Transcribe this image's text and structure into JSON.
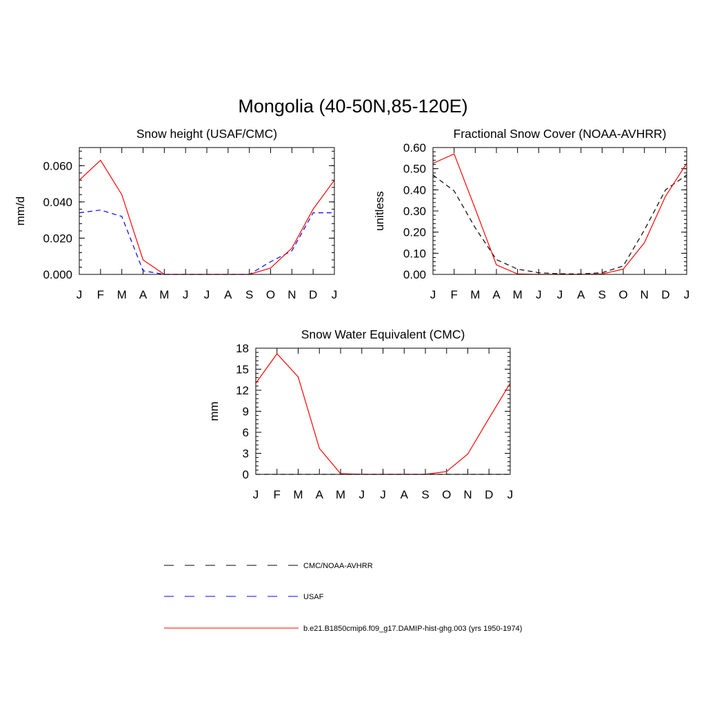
{
  "title": "Mongolia (40-50N,85-120E)",
  "months": [
    "J",
    "F",
    "M",
    "A",
    "M",
    "J",
    "J",
    "A",
    "S",
    "O",
    "N",
    "D",
    "J"
  ],
  "chart_data": [
    {
      "type": "line",
      "title": "Snow height (USAF/CMC)",
      "xlabel": "",
      "ylabel": "mm/d",
      "ylim": [
        0,
        0.07
      ],
      "yticks": [
        "0.000",
        "0.020",
        "0.040",
        "0.060"
      ],
      "ytick_values": [
        0,
        0.02,
        0.04,
        0.06
      ],
      "series": [
        {
          "name": "USAF",
          "style": "dashed",
          "color": "#0000ff",
          "values": [
            0.034,
            0.0355,
            0.032,
            0.002,
            0.0,
            0.0,
            0.0,
            0.0,
            0.0,
            0.007,
            0.013,
            0.034,
            0.034
          ]
        },
        {
          "name": "b.e21.B1850cmip6.f09_g17.DAMIP-hist-ghg.003 (yrs 1950-1974)",
          "style": "solid",
          "color": "#ff0000",
          "values": [
            0.052,
            0.063,
            0.044,
            0.008,
            0.0,
            0.0,
            0.0,
            0.0,
            0.0,
            0.0035,
            0.0145,
            0.036,
            0.052
          ]
        }
      ]
    },
    {
      "type": "line",
      "title": "Fractional Snow Cover (NOAA-AVHRR)",
      "xlabel": "",
      "ylabel": "unitless",
      "ylim": [
        0,
        0.6
      ],
      "yticks": [
        "0.00",
        "0.10",
        "0.20",
        "0.30",
        "0.40",
        "0.50",
        "0.60"
      ],
      "ytick_values": [
        0,
        0.1,
        0.2,
        0.3,
        0.4,
        0.5,
        0.6
      ],
      "series": [
        {
          "name": "CMC/NOAA-AVHRR",
          "style": "dashed",
          "color": "#000000",
          "values": [
            0.47,
            0.395,
            0.22,
            0.07,
            0.025,
            0.008,
            0.003,
            0.002,
            0.008,
            0.04,
            0.21,
            0.4,
            0.47
          ]
        },
        {
          "name": "b.e21.B1850cmip6.f09_g17.DAMIP-hist-ghg.003 (yrs 1950-1974)",
          "style": "solid",
          "color": "#ff0000",
          "values": [
            0.525,
            0.57,
            0.31,
            0.045,
            0.002,
            0.0,
            0.0,
            0.0,
            0.002,
            0.025,
            0.15,
            0.37,
            0.525
          ]
        }
      ]
    },
    {
      "type": "line",
      "title": "Snow Water Equivalent (CMC)",
      "xlabel": "",
      "ylabel": "mm",
      "ylim": [
        0,
        18
      ],
      "yticks": [
        "0",
        "3",
        "6",
        "9",
        "12",
        "15",
        "18"
      ],
      "ytick_values": [
        0,
        3,
        6,
        9,
        12,
        15,
        18
      ],
      "series": [
        {
          "name": "CMC/NOAA-AVHRR",
          "style": "dashed",
          "color": "#000000",
          "values": [
            0,
            0,
            0,
            0,
            0,
            0,
            0,
            0,
            0,
            0,
            0,
            0,
            0
          ]
        },
        {
          "name": "b.e21.B1850cmip6.f09_g17.DAMIP-hist-ghg.003 (yrs 1950-1974)",
          "style": "solid",
          "color": "#ff0000",
          "values": [
            13.0,
            17.2,
            13.9,
            3.7,
            0.1,
            0.0,
            0.0,
            0.0,
            0.0,
            0.4,
            2.9,
            8.0,
            13.0
          ]
        }
      ]
    }
  ],
  "legend": [
    {
      "label": "CMC/NOAA-AVHRR",
      "style": "dashed",
      "color": "#000000"
    },
    {
      "label": "USAF",
      "style": "dashed",
      "color": "#0000ff"
    },
    {
      "label": "b.e21.B1850cmip6.f09_g17.DAMIP-hist-ghg.003 (yrs 1950-1974)",
      "style": "solid",
      "color": "#ff0000"
    }
  ]
}
